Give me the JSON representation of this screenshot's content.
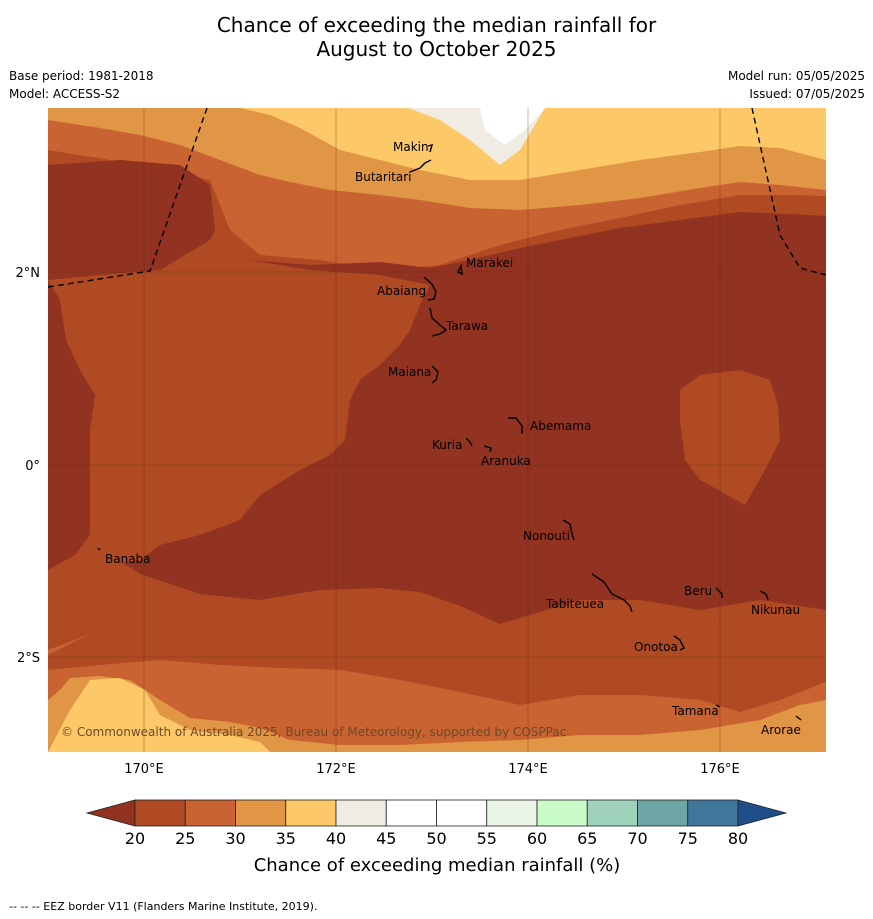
{
  "title_line1": "Chance of exceeding the median rainfall for",
  "title_line2": "August to October 2025",
  "meta": {
    "base_period": "Base period: 1981-2018",
    "model": "Model: ACCESS-S2",
    "model_run": "Model run: 05/05/2025",
    "issued": "Issued: 07/05/2025"
  },
  "map": {
    "lon_ticks": [
      "170°E",
      "172°E",
      "174°E",
      "176°E"
    ],
    "lat_ticks": [
      "2°N",
      "0°",
      "2°S"
    ],
    "copyright": "© Commonwealth of Australia 2025, Bureau of Meteorology, supported by COSPPac",
    "places": [
      "Makin",
      "Butaritari",
      "Marakei",
      "Abaiang",
      "Tarawa",
      "Maiana",
      "Abemama",
      "Kuria",
      "Aranuka",
      "Nonouti",
      "Banaba",
      "Beru",
      "Nikunau",
      "Tabiteuea",
      "Onotoa",
      "Tamana",
      "Arorae"
    ]
  },
  "colorbar": {
    "ticks": [
      "20",
      "25",
      "30",
      "35",
      "40",
      "45",
      "50",
      "55",
      "60",
      "65",
      "70",
      "75",
      "80"
    ],
    "colors": [
      "#af4a23",
      "#c96331",
      "#e09645",
      "#fdc868",
      "#f0ebe3",
      "#ffffff",
      "#ffffff",
      "#eaf5e8",
      "#c9fbc8",
      "#9fd2bb",
      "#70a5a5",
      "#3f7699"
    ],
    "under_color": "#923220",
    "over_color": "#1f4f88",
    "label": "Chance of exceeding median rainfall (%)"
  },
  "legend_colors": {
    "c20": "#923220",
    "c25": "#af4a23",
    "c30": "#c96331",
    "c35": "#e09645",
    "c40": "#fdc868",
    "c45": "#f0ebe3"
  },
  "footer": "-- -- -- EEZ border V11 (Flanders Marine Institute, 2019)."
}
